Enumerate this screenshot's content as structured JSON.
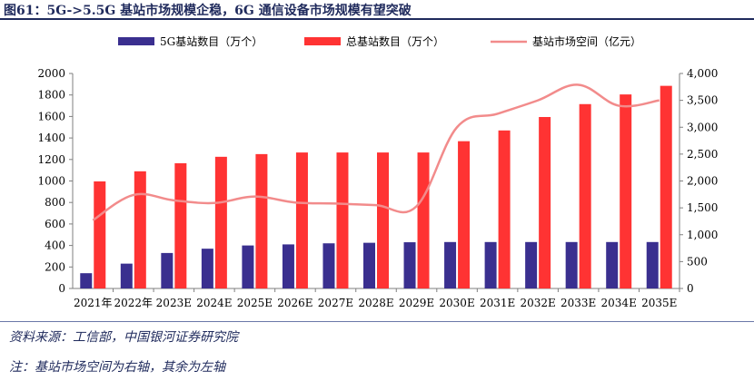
{
  "title": "图61：5G->5.5G 基站市场规模企稳，6G 通信设备市场规模有望突破",
  "source": "资料来源：工信部，中国银河证券研究院",
  "note": "注：基站市场空间为右轴，其余为左轴",
  "colors": {
    "series1": "#3a2f8f",
    "series2": "#ff3333",
    "series3": "#f28b8b",
    "axis": "#7f7f7f"
  },
  "chart_data": {
    "type": "bar",
    "categories": [
      "2021年",
      "2022年",
      "2023E",
      "2024E",
      "2025E",
      "2026E",
      "2027E",
      "2028E",
      "2029E",
      "2030E",
      "2031E",
      "2032E",
      "2033E",
      "2034E",
      "2035E"
    ],
    "series": [
      {
        "name": "5G基站数目（万个）",
        "type": "bar",
        "axis": "left",
        "values": [
          142,
          231,
          330,
          370,
          400,
          410,
          420,
          425,
          430,
          432,
          432,
          432,
          432,
          432,
          432
        ]
      },
      {
        "name": "总基站数目（万个）",
        "type": "bar",
        "axis": "left",
        "values": [
          996,
          1090,
          1165,
          1225,
          1250,
          1265,
          1265,
          1265,
          1265,
          1370,
          1470,
          1595,
          1715,
          1805,
          1885
        ]
      },
      {
        "name": "基站市场空间（亿元）",
        "type": "line",
        "axis": "right",
        "values": [
          1270,
          1740,
          1640,
          1590,
          1710,
          1600,
          1580,
          1550,
          1530,
          3000,
          3250,
          3500,
          3790,
          3400,
          3500
        ]
      }
    ],
    "yticks_left": [
      "0",
      "200",
      "400",
      "600",
      "800",
      "1000",
      "1200",
      "1400",
      "1600",
      "1800",
      "2000"
    ],
    "yticks_right": [
      "0",
      "500",
      "1,000",
      "1,500",
      "2,000",
      "2,500",
      "3,000",
      "3,500",
      "4,000"
    ],
    "ylim_left": [
      0,
      2000
    ],
    "ylim_right": [
      0,
      4000
    ],
    "legend_position": "top"
  }
}
